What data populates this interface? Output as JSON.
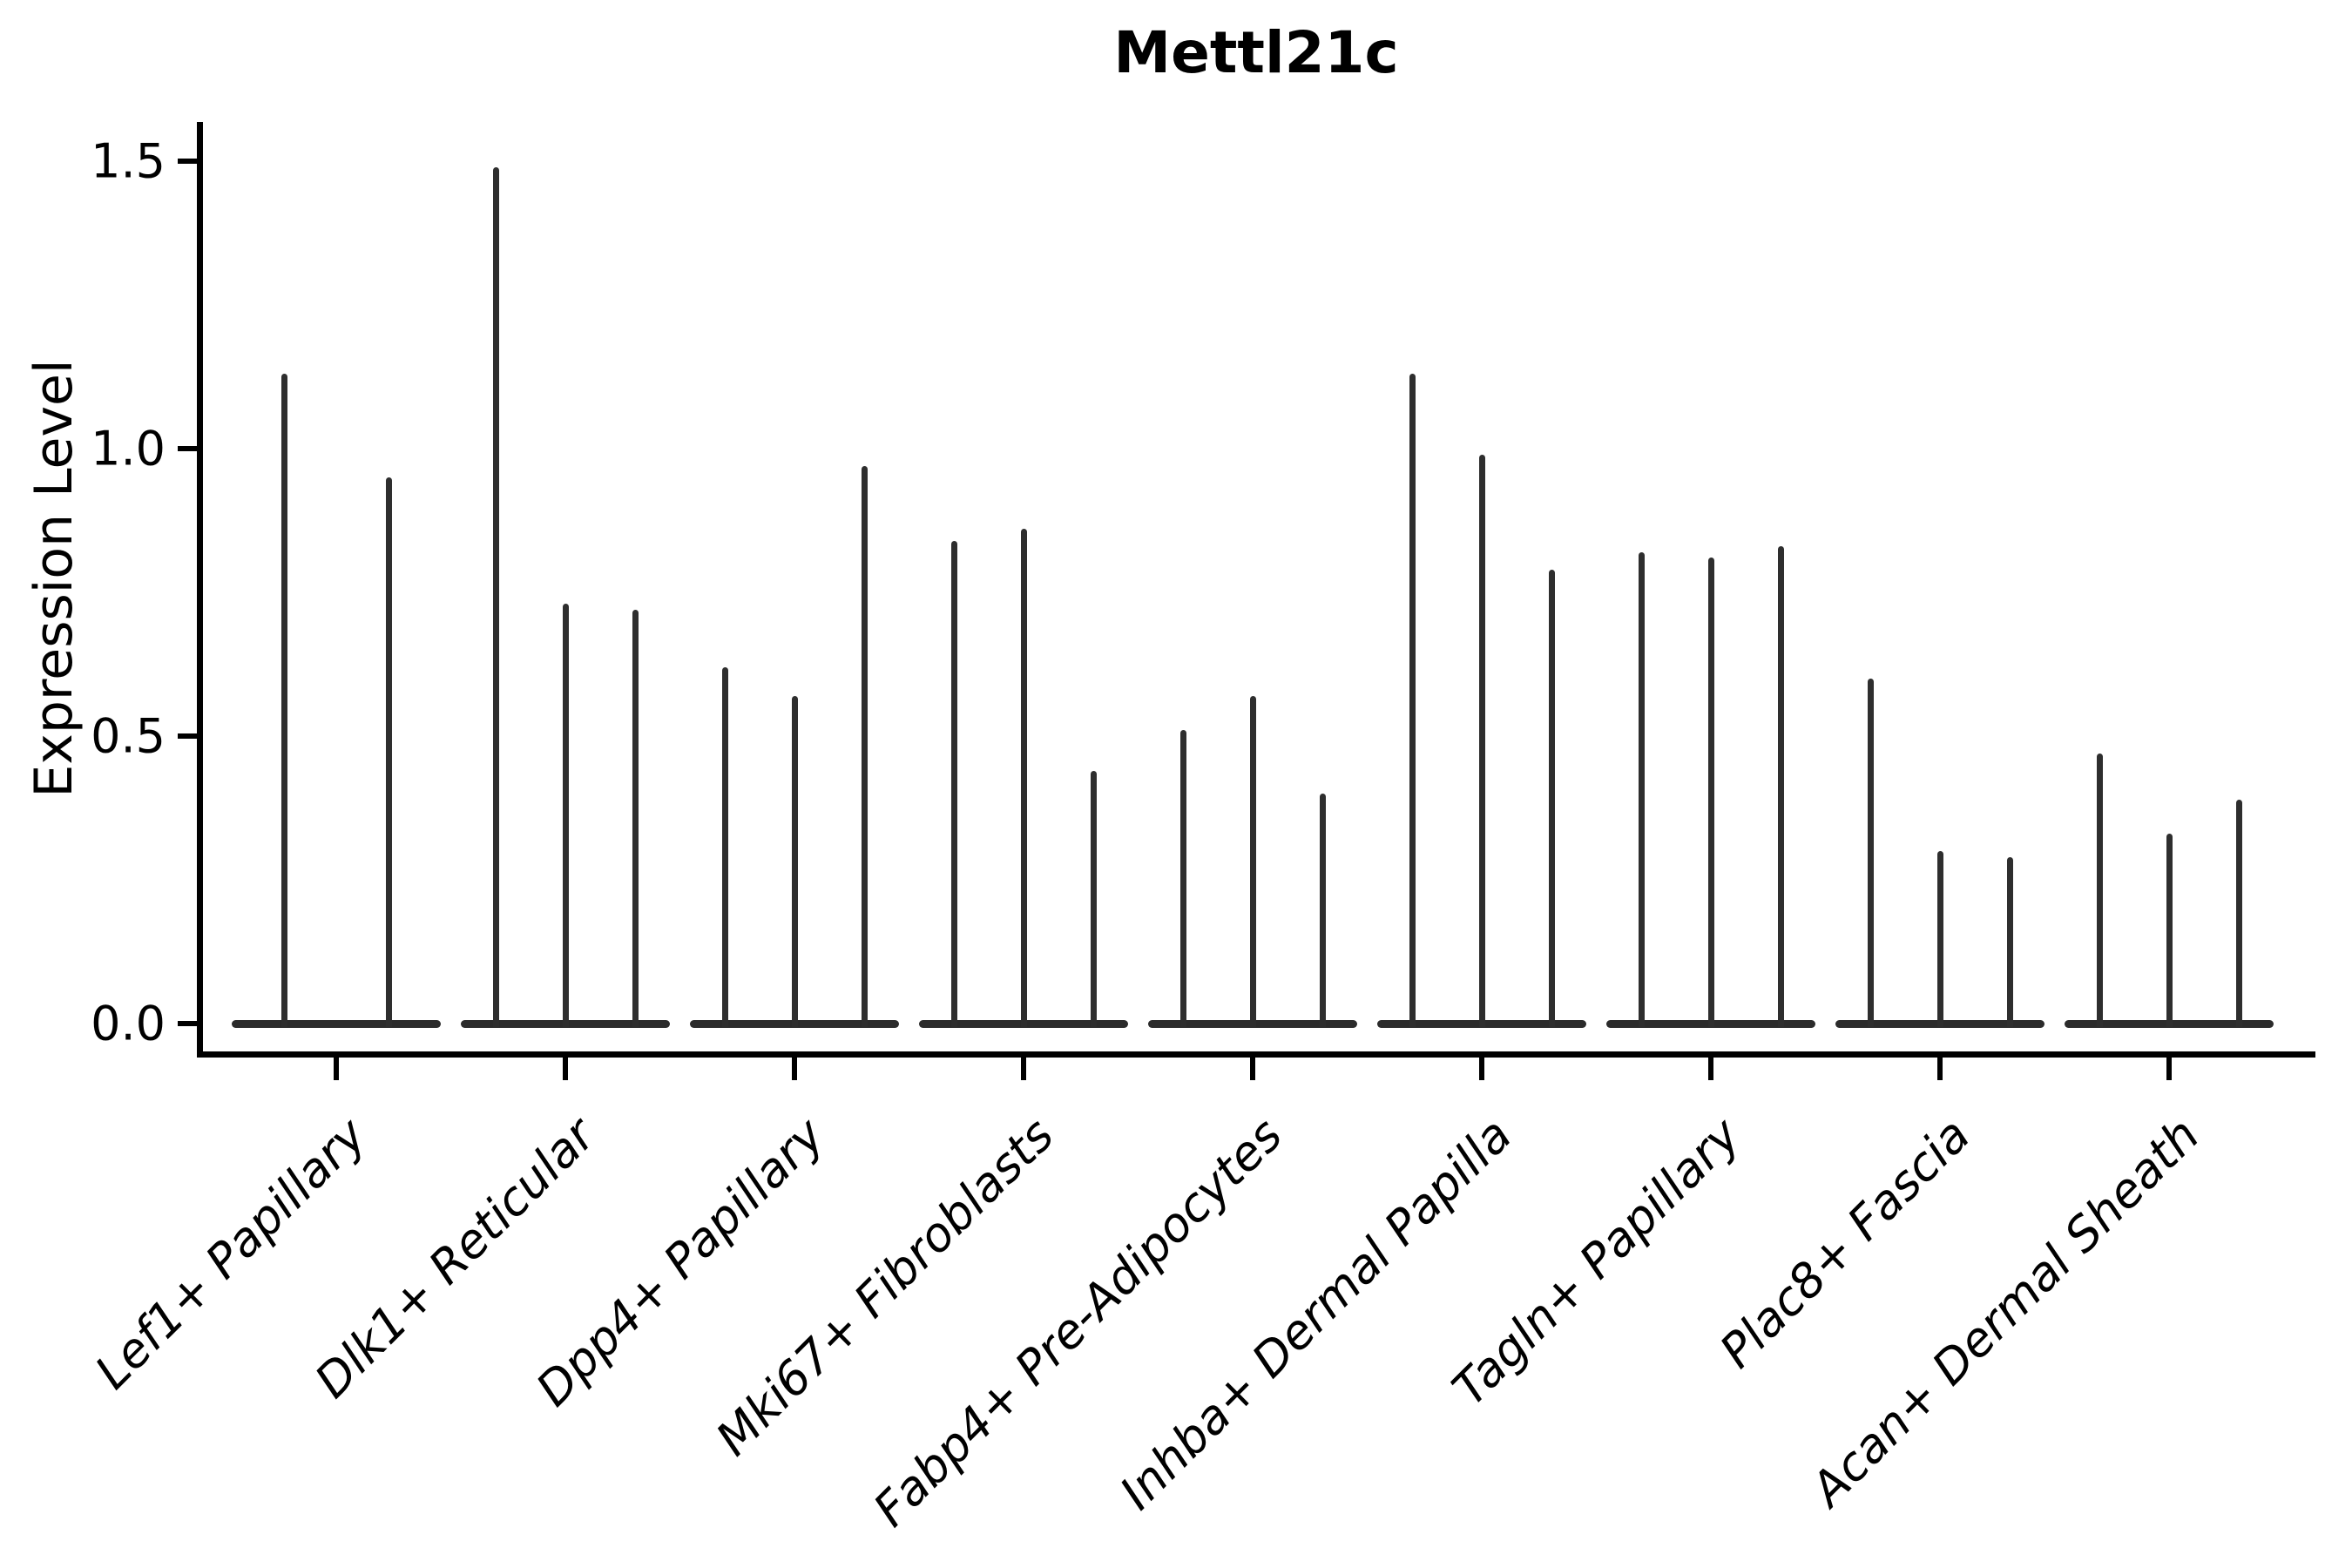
{
  "title": "Mettl21c",
  "axes": {
    "ylabel": "Expression Level",
    "ytick_labels": [
      "0.0",
      "0.5",
      "1.0",
      "1.5"
    ]
  },
  "colors": {
    "spike": "#2e2e2e",
    "axis": "#000000",
    "text": "#000000",
    "background": "#ffffff"
  },
  "chart_data": {
    "type": "violin",
    "title": "Mettl21c",
    "xlabel": "",
    "ylabel": "Expression Level",
    "ylim": [
      0,
      1.55
    ],
    "yticks": [
      0,
      0.5,
      1.0,
      1.5
    ],
    "grid": false,
    "legend": "none",
    "description": "Sparse expression violin plot: each group shows thin spike-like violins rising from a flat base at 0; spike height = maximum expression level per violin.",
    "categories": [
      "Lef1+ Papillary",
      "Dlk1+ Reticular",
      "Dpp4+ Papillary",
      "Mki67+ Fibroblasts",
      "Fabp4+ Pre-Adipocytes",
      "Inhba+ Dermal Papilla",
      "Tagln+ Papillary",
      "Plac8+ Fascia",
      "Acan+ Dermal Sheath"
    ],
    "groups": [
      {
        "label": "Lef1+ Papillary",
        "peaks": [
          {
            "dx": -60,
            "v": 1.13
          },
          {
            "dx": 60,
            "v": 0.95
          }
        ]
      },
      {
        "label": "Dlk1+ Reticular",
        "peaks": [
          {
            "dx": -80,
            "v": 1.49
          },
          {
            "dx": 0,
            "v": 0.73
          },
          {
            "dx": 80,
            "v": 0.72
          }
        ]
      },
      {
        "label": "Dpp4+ Papillary",
        "peaks": [
          {
            "dx": -80,
            "v": 0.62
          },
          {
            "dx": 0,
            "v": 0.57
          },
          {
            "dx": 80,
            "v": 0.97
          }
        ]
      },
      {
        "label": "Mki67+ Fibroblasts",
        "peaks": [
          {
            "dx": -80,
            "v": 0.84
          },
          {
            "dx": 0,
            "v": 0.86
          },
          {
            "dx": 80,
            "v": 0.44
          }
        ]
      },
      {
        "label": "Fabp4+ Pre-Adipocytes",
        "peaks": [
          {
            "dx": -80,
            "v": 0.51
          },
          {
            "dx": 0,
            "v": 0.57
          },
          {
            "dx": 80,
            "v": 0.4
          }
        ]
      },
      {
        "label": "Inhba+ Dermal Papilla",
        "peaks": [
          {
            "dx": -80,
            "v": 1.13
          },
          {
            "dx": 0,
            "v": 0.99
          },
          {
            "dx": 80,
            "v": 0.79
          }
        ]
      },
      {
        "label": "Tagln+ Papillary",
        "peaks": [
          {
            "dx": -80,
            "v": 0.82
          },
          {
            "dx": 0,
            "v": 0.81
          },
          {
            "dx": 80,
            "v": 0.83
          }
        ]
      },
      {
        "label": "Plac8+ Fascia",
        "peaks": [
          {
            "dx": -80,
            "v": 0.6
          },
          {
            "dx": 0,
            "v": 0.3
          },
          {
            "dx": 80,
            "v": 0.29
          }
        ]
      },
      {
        "label": "Acan+ Dermal Sheath",
        "peaks": [
          {
            "dx": -80,
            "v": 0.47
          },
          {
            "dx": 0,
            "v": 0.33
          },
          {
            "dx": 80,
            "v": 0.39
          }
        ]
      }
    ]
  }
}
